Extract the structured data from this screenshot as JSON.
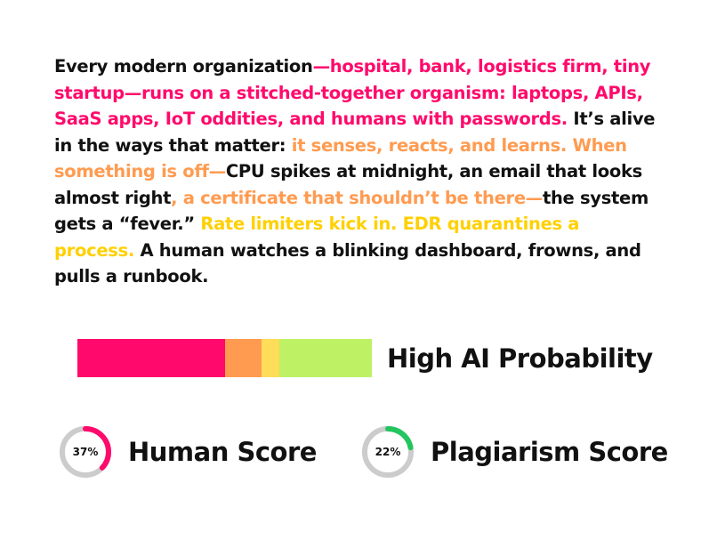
{
  "passage": {
    "segments": [
      {
        "text": "Every modern organization",
        "color": "#111111"
      },
      {
        "text": "—hospital, bank, logistics firm, tiny startup—runs on a stitched-together organism: laptops, APIs, SaaS apps, IoT oddities, and humans with passwords.",
        "color": "#FF0A6C"
      },
      {
        "text": " It’s alive in the ways that matter: ",
        "color": "#111111"
      },
      {
        "text": "it senses, reacts, and learns. When something is off—",
        "color": "#FF9B50"
      },
      {
        "text": "CPU spikes at midnight, an email that looks almost right",
        "color": "#111111"
      },
      {
        "text": ", a certificate that shouldn’t be there—",
        "color": "#FF9B50"
      },
      {
        "text": "the system gets a “fever.” ",
        "color": "#111111"
      },
      {
        "text": "Rate limiters kick in. EDR quarantines a process.",
        "color": "#FFD000"
      },
      {
        "text": " A human watches a blinking dashboard, frowns, and pulls a runbook.",
        "color": "#111111"
      }
    ]
  },
  "ai_meter": {
    "segments": [
      {
        "share": 0.5,
        "color": "#FF0A6C"
      },
      {
        "share": 0.125,
        "color": "#FF9B50"
      },
      {
        "share": 0.06,
        "color": "#FFDC5A"
      },
      {
        "share": 0.315,
        "color": "#BEF264"
      }
    ],
    "verdict": "High AI Probability"
  },
  "human_score": {
    "value_text": "37%",
    "value": 0.37,
    "label": "Human Score",
    "ring_color": "#FF0A6C",
    "track_color": "#CCCCCC"
  },
  "plagiarism_score": {
    "value_text": "22%",
    "value": 0.22,
    "label": "Plagiarism Score",
    "ring_color": "#22C55E",
    "track_color": "#CCCCCC"
  }
}
